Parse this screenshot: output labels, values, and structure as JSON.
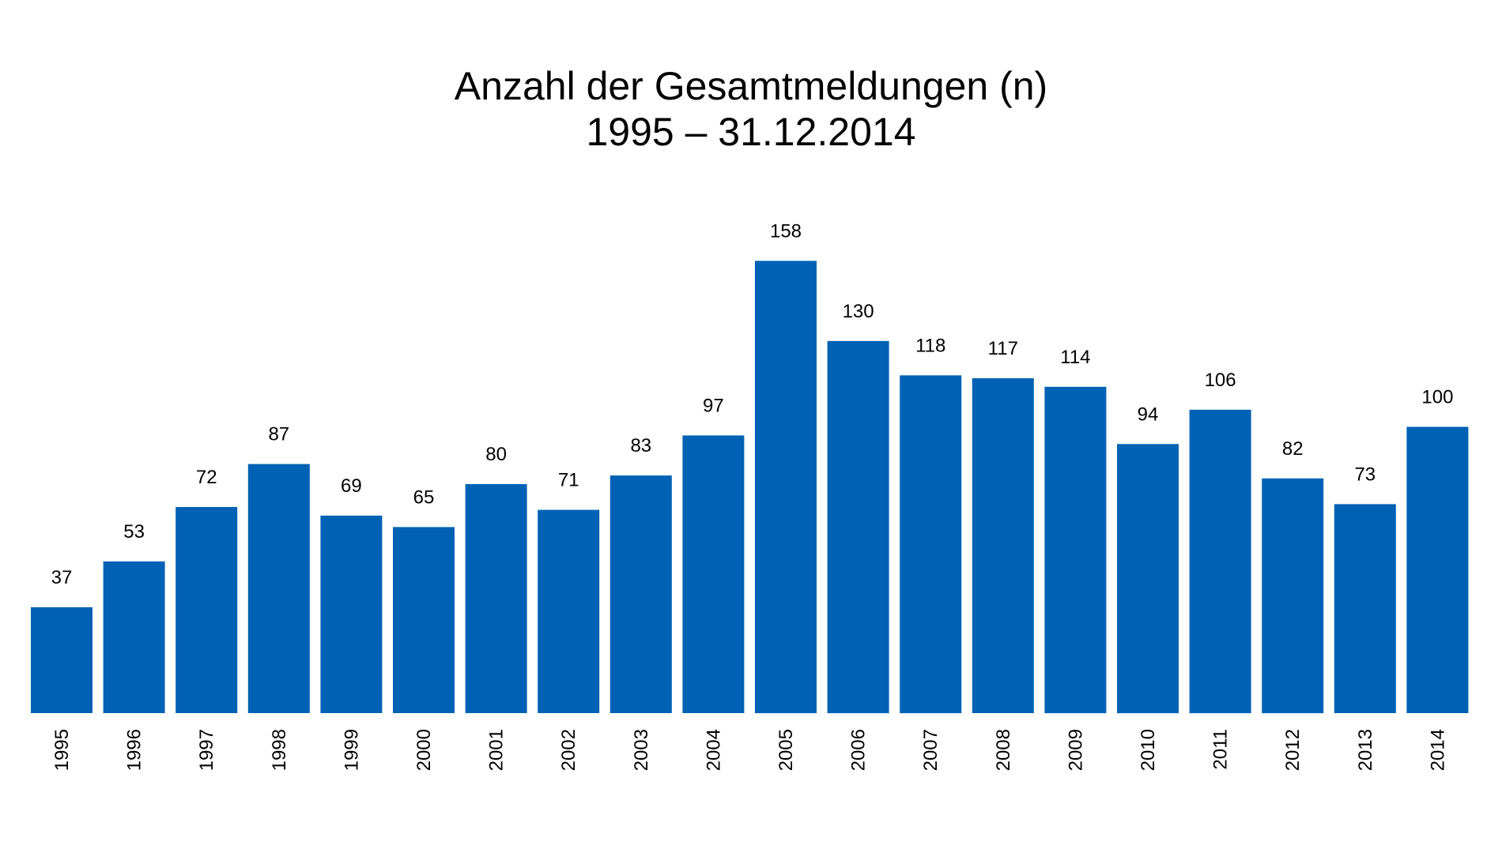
{
  "chart_data": {
    "type": "bar",
    "title": "Anzahl der Gesamtmeldungen (n)",
    "subtitle": "1995 – 31.12.2014",
    "categories": [
      "1995",
      "1996",
      "1997",
      "1998",
      "1999",
      "2000",
      "2001",
      "2002",
      "2003",
      "2004",
      "2005",
      "2006",
      "2007",
      "2008",
      "2009",
      "2010",
      "2011",
      "2012",
      "2013",
      "2014"
    ],
    "values": [
      37,
      53,
      72,
      87,
      69,
      65,
      80,
      71,
      83,
      97,
      158,
      130,
      118,
      117,
      114,
      94,
      106,
      82,
      73,
      100
    ],
    "ylim": [
      0,
      160
    ],
    "grid": false,
    "data_labels": true,
    "bar_color": "#0062b4",
    "x_tick_rotation": "vertical"
  }
}
